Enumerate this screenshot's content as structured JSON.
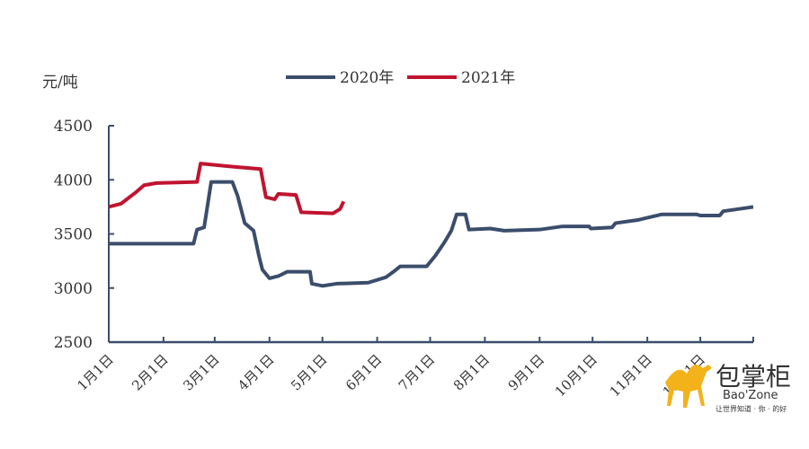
{
  "chart_data": {
    "type": "line",
    "title": "",
    "ylabel": "元/吨",
    "xlabel": "",
    "ylim": [
      2500,
      4500
    ],
    "yticks": [
      2500,
      3000,
      3500,
      4000,
      4500
    ],
    "xlim_days": [
      0,
      365
    ],
    "xtick_labels": [
      "1月1日",
      "2月1日",
      "3月1日",
      "4月1日",
      "5月1日",
      "6月1日",
      "7月1日",
      "8月1日",
      "9月1日",
      "10月1日",
      "11月1日",
      "12月1日"
    ],
    "xtick_days": [
      0,
      31,
      60,
      91,
      121,
      152,
      182,
      213,
      244,
      274,
      305,
      335
    ],
    "legend_position": "top-center",
    "grid": false,
    "series": [
      {
        "name": "2020年",
        "color": "#3b4d6b",
        "points": [
          [
            0,
            3410
          ],
          [
            48,
            3410
          ],
          [
            50,
            3540
          ],
          [
            54,
            3560
          ],
          [
            58,
            3980
          ],
          [
            70,
            3980
          ],
          [
            73,
            3850
          ],
          [
            77,
            3600
          ],
          [
            82,
            3530
          ],
          [
            85,
            3300
          ],
          [
            87,
            3170
          ],
          [
            91,
            3090
          ],
          [
            96,
            3110
          ],
          [
            101,
            3150
          ],
          [
            114,
            3150
          ],
          [
            115,
            3040
          ],
          [
            121,
            3020
          ],
          [
            129,
            3040
          ],
          [
            147,
            3050
          ],
          [
            157,
            3100
          ],
          [
            162,
            3160
          ],
          [
            165,
            3200
          ],
          [
            180,
            3200
          ],
          [
            185,
            3300
          ],
          [
            190,
            3420
          ],
          [
            194,
            3530
          ],
          [
            197,
            3680
          ],
          [
            202,
            3680
          ],
          [
            204,
            3540
          ],
          [
            216,
            3550
          ],
          [
            224,
            3530
          ],
          [
            244,
            3540
          ],
          [
            257,
            3570
          ],
          [
            272,
            3570
          ],
          [
            273,
            3550
          ],
          [
            285,
            3560
          ],
          [
            287,
            3600
          ],
          [
            300,
            3630
          ],
          [
            313,
            3680
          ],
          [
            333,
            3680
          ],
          [
            335,
            3670
          ],
          [
            346,
            3670
          ],
          [
            348,
            3710
          ],
          [
            361,
            3740
          ],
          [
            365,
            3750
          ]
        ]
      },
      {
        "name": "2021年",
        "color": "#c0142f",
        "points": [
          [
            0,
            3750
          ],
          [
            7,
            3780
          ],
          [
            15,
            3880
          ],
          [
            20,
            3950
          ],
          [
            27,
            3970
          ],
          [
            50,
            3980
          ],
          [
            52,
            4150
          ],
          [
            71,
            4120
          ],
          [
            86,
            4100
          ],
          [
            89,
            3840
          ],
          [
            94,
            3820
          ],
          [
            96,
            3870
          ],
          [
            106,
            3860
          ],
          [
            109,
            3700
          ],
          [
            127,
            3690
          ],
          [
            131,
            3730
          ],
          [
            133,
            3800
          ]
        ]
      }
    ]
  },
  "logo": {
    "name_cn": "包掌柜",
    "name_en": "Bao'Zone",
    "slogan": "让世界知道 · 你 · 的好"
  }
}
